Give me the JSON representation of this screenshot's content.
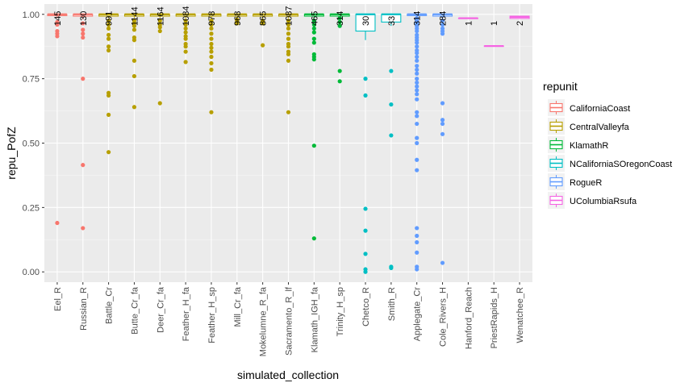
{
  "chart_data": {
    "type": "box",
    "xlabel": "simulated_collection",
    "ylabel": "repu_PofZ",
    "ylim": [
      -0.04,
      1.04
    ],
    "yticks": [
      0.0,
      0.25,
      0.5,
      0.75,
      1.0
    ],
    "ytick_labels": [
      "0.00",
      "0.25",
      "0.50",
      "0.75",
      "1.00"
    ],
    "grid": true,
    "legend": {
      "title": "repunit",
      "position": "right",
      "items": [
        {
          "name": "CaliforniaCoast",
          "color": "#F8766D"
        },
        {
          "name": "CentralValleyfa",
          "color": "#B79F00"
        },
        {
          "name": "KlamathR",
          "color": "#00BA38"
        },
        {
          "name": "NCaliforniaSOregonCoast",
          "color": "#00BFC4"
        },
        {
          "name": "RogueR",
          "color": "#619CFF"
        },
        {
          "name": "UColumbiaRsufa",
          "color": "#F564E3"
        }
      ]
    },
    "categories": [
      {
        "label": "Eel_R",
        "count": "145",
        "color": "#F8766D",
        "q1": 0.995,
        "median": 1.0,
        "q3": 1.0,
        "wlo": 0.985,
        "whi": 1.0,
        "outliers": [
          0.97,
          0.96,
          0.935,
          0.925,
          0.915,
          0.19
        ]
      },
      {
        "label": "Russian_R",
        "count": "130",
        "color": "#F8766D",
        "q1": 0.993,
        "median": 1.0,
        "q3": 1.0,
        "wlo": 0.98,
        "whi": 1.0,
        "outliers": [
          0.965,
          0.94,
          0.925,
          0.91,
          0.75,
          0.415,
          0.17
        ]
      },
      {
        "label": "Battle_Cr",
        "count": "991",
        "color": "#B79F00",
        "q1": 0.993,
        "median": 1.0,
        "q3": 1.0,
        "wlo": 0.985,
        "whi": 1.0,
        "outliers": [
          0.975,
          0.96,
          0.945,
          0.92,
          0.905,
          0.875,
          0.86,
          0.695,
          0.685,
          0.61,
          0.465
        ]
      },
      {
        "label": "Butte_Cr_fa",
        "count": "1144",
        "color": "#B79F00",
        "q1": 0.993,
        "median": 1.0,
        "q3": 1.0,
        "wlo": 0.985,
        "whi": 1.0,
        "outliers": [
          0.975,
          0.965,
          0.955,
          0.94,
          0.91,
          0.9,
          0.82,
          0.76,
          0.64
        ]
      },
      {
        "label": "Deer_Cr_fa",
        "count": "1164",
        "color": "#B79F00",
        "q1": 0.993,
        "median": 1.0,
        "q3": 1.0,
        "wlo": 0.985,
        "whi": 1.0,
        "outliers": [
          0.975,
          0.96,
          0.95,
          0.935,
          0.655
        ]
      },
      {
        "label": "Feather_H_fa",
        "count": "1084",
        "color": "#B79F00",
        "q1": 0.993,
        "median": 1.0,
        "q3": 1.0,
        "wlo": 0.985,
        "whi": 1.0,
        "outliers": [
          0.975,
          0.96,
          0.945,
          0.93,
          0.915,
          0.905,
          0.885,
          0.875,
          0.855,
          0.815
        ]
      },
      {
        "label": "Feather_H_sp",
        "count": "978",
        "color": "#B79F00",
        "q1": 0.993,
        "median": 1.0,
        "q3": 1.0,
        "wlo": 0.985,
        "whi": 1.0,
        "outliers": [
          0.975,
          0.96,
          0.945,
          0.925,
          0.905,
          0.885,
          0.87,
          0.855,
          0.835,
          0.81,
          0.785,
          0.62
        ]
      },
      {
        "label": "Mill_Cr_fa",
        "count": "968",
        "color": "#B79F00",
        "q1": 0.993,
        "median": 1.0,
        "q3": 1.0,
        "wlo": 0.985,
        "whi": 1.0,
        "outliers": [
          0.98,
          0.975,
          0.97,
          0.965
        ]
      },
      {
        "label": "Mokelumne_R_fa",
        "count": "865",
        "color": "#B79F00",
        "q1": 0.993,
        "median": 1.0,
        "q3": 1.0,
        "wlo": 0.985,
        "whi": 1.0,
        "outliers": [
          0.975,
          0.965,
          0.88
        ]
      },
      {
        "label": "Sacramento_R_lf",
        "count": "1087",
        "color": "#B79F00",
        "q1": 0.993,
        "median": 1.0,
        "q3": 1.0,
        "wlo": 0.985,
        "whi": 1.0,
        "outliers": [
          0.975,
          0.96,
          0.945,
          0.925,
          0.905,
          0.885,
          0.875,
          0.855,
          0.845,
          0.82,
          0.62
        ]
      },
      {
        "label": "Klamath_IGH_fa",
        "count": "465",
        "color": "#00BA38",
        "q1": 0.993,
        "median": 1.0,
        "q3": 1.0,
        "wlo": 0.985,
        "whi": 1.0,
        "outliers": [
          0.975,
          0.96,
          0.945,
          0.93,
          0.905,
          0.89,
          0.845,
          0.835,
          0.825,
          0.49,
          0.13
        ]
      },
      {
        "label": "Trinity_H_sp",
        "count": "314",
        "color": "#00BA38",
        "q1": 0.993,
        "median": 1.0,
        "q3": 1.0,
        "wlo": 0.985,
        "whi": 1.0,
        "outliers": [
          0.985,
          0.97,
          0.955,
          0.78,
          0.74
        ]
      },
      {
        "label": "Chetco_R",
        "count": "30",
        "color": "#00BFC4",
        "q1": 0.935,
        "median": 1.0,
        "q3": 1.0,
        "wlo": 0.9,
        "whi": 1.0,
        "outliers": [
          0.75,
          0.685,
          0.245,
          0.16,
          0.07,
          0.01,
          0.0
        ]
      },
      {
        "label": "Smith_R",
        "count": "33",
        "color": "#00BFC4",
        "q1": 0.97,
        "median": 1.0,
        "q3": 1.0,
        "wlo": 0.955,
        "whi": 1.0,
        "outliers": [
          0.78,
          0.65,
          0.53,
          0.02,
          0.015
        ]
      },
      {
        "label": "Applegate_Cr",
        "count": "314",
        "color": "#619CFF",
        "q1": 0.995,
        "median": 1.0,
        "q3": 1.0,
        "wlo": 0.99,
        "whi": 1.0,
        "outliers": [
          0.985,
          0.975,
          0.965,
          0.955,
          0.945,
          0.935,
          0.92,
          0.91,
          0.9,
          0.89,
          0.875,
          0.86,
          0.85,
          0.835,
          0.82,
          0.8,
          0.785,
          0.77,
          0.75,
          0.735,
          0.72,
          0.705,
          0.69,
          0.67,
          0.62,
          0.605,
          0.575,
          0.52,
          0.5,
          0.435,
          0.395,
          0.17,
          0.14,
          0.115,
          0.075,
          0.02,
          0.01
        ]
      },
      {
        "label": "Cole_Rivers_H",
        "count": "284",
        "color": "#619CFF",
        "q1": 0.993,
        "median": 1.0,
        "q3": 1.0,
        "wlo": 0.985,
        "whi": 1.0,
        "outliers": [
          0.975,
          0.96,
          0.945,
          0.935,
          0.925,
          0.655,
          0.59,
          0.575,
          0.535,
          0.035
        ]
      },
      {
        "label": "Hanford_Reach",
        "count": "1",
        "color": "#F564E3",
        "q1": 0.985,
        "median": 0.985,
        "q3": 0.985,
        "wlo": 0.985,
        "whi": 0.985,
        "outliers": []
      },
      {
        "label": "PriestRapids_H",
        "count": "1",
        "color": "#F564E3",
        "q1": 0.877,
        "median": 0.877,
        "q3": 0.877,
        "wlo": 0.877,
        "whi": 0.877,
        "outliers": []
      },
      {
        "label": "Wenatchee_R",
        "count": "2",
        "color": "#F564E3",
        "q1": 0.984,
        "median": 0.99,
        "q3": 0.993,
        "wlo": 0.984,
        "whi": 0.993,
        "outliers": []
      }
    ]
  }
}
